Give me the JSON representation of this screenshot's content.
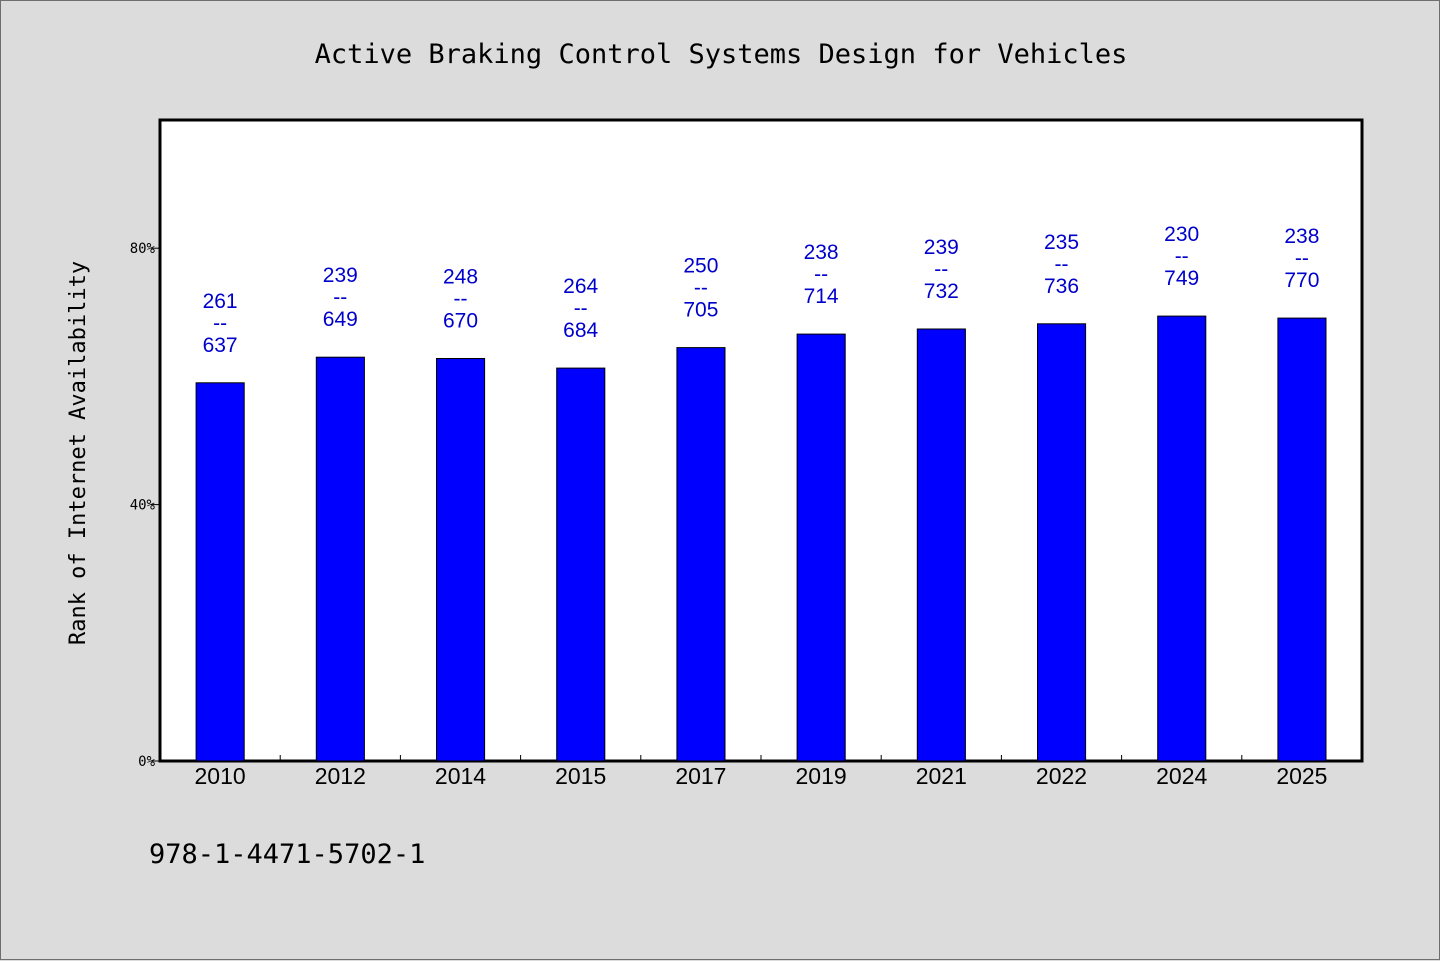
{
  "chart_data": {
    "type": "bar",
    "title": "Active Braking Control Systems Design for Vehicles",
    "xlabel": "",
    "ylabel": "Rank of Internet Availability",
    "categories": [
      "2010",
      "2012",
      "2014",
      "2015",
      "2017",
      "2019",
      "2021",
      "2022",
      "2024",
      "2025"
    ],
    "values": [
      59,
      63,
      62.8,
      61.3,
      64.5,
      66.6,
      67.4,
      68.2,
      69.4,
      69.1
    ],
    "data_labels": [
      {
        "top": "261",
        "bottom": "637"
      },
      {
        "top": "239",
        "bottom": "649"
      },
      {
        "top": "248",
        "bottom": "670"
      },
      {
        "top": "264",
        "bottom": "684"
      },
      {
        "top": "250",
        "bottom": "705"
      },
      {
        "top": "238",
        "bottom": "714"
      },
      {
        "top": "239",
        "bottom": "732"
      },
      {
        "top": "235",
        "bottom": "736"
      },
      {
        "top": "230",
        "bottom": "749"
      },
      {
        "top": "238",
        "bottom": "770"
      }
    ],
    "label_separator": "--",
    "yticks": [
      {
        "value": 0,
        "label": "0%"
      },
      {
        "value": 40,
        "label": "40%"
      },
      {
        "value": 80,
        "label": "80%"
      }
    ],
    "ylim": [
      0,
      100
    ],
    "grid": false,
    "bar_color": "#0000ff",
    "label_color": "#0000cc"
  },
  "footnote": "978-1-4471-5702-1"
}
